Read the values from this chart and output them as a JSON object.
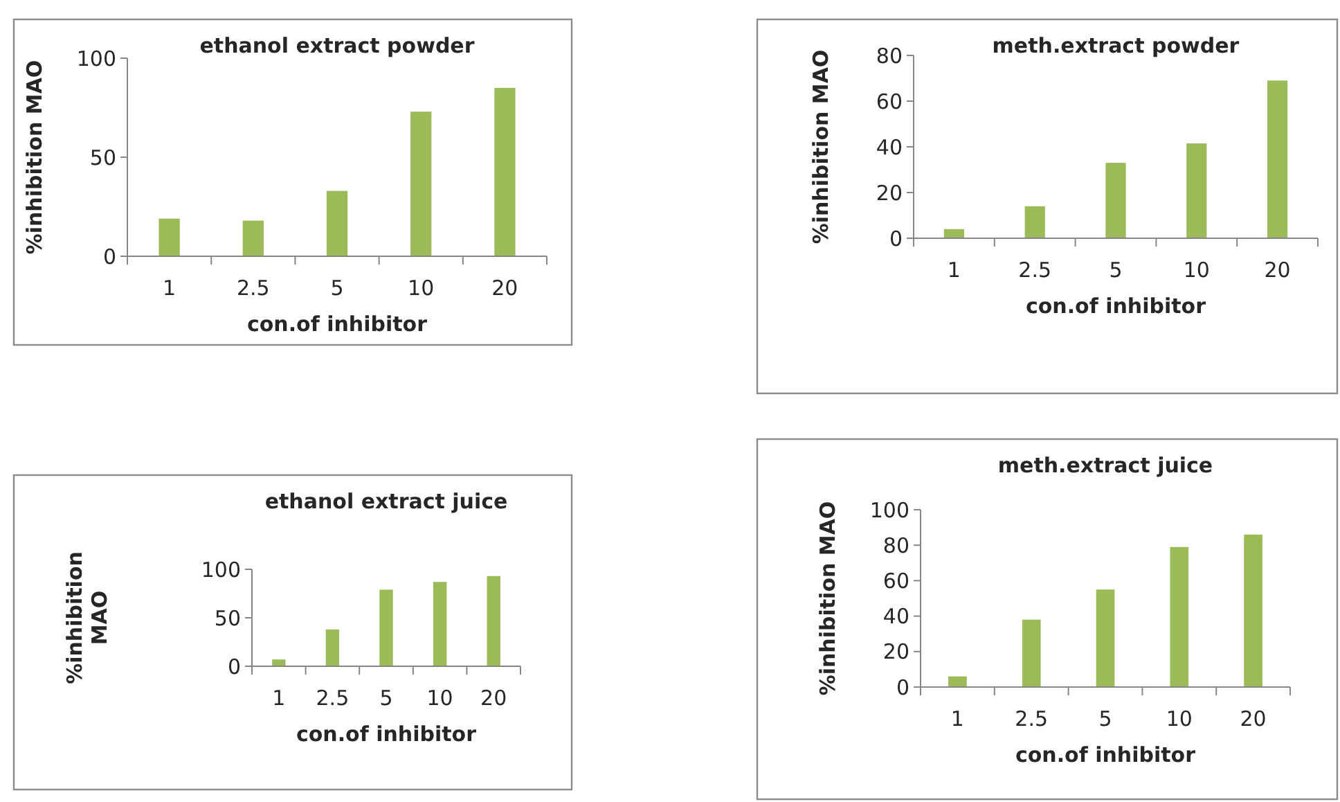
{
  "chart_data": [
    {
      "type": "bar",
      "title": "ethanol  extract powder",
      "xlabel": "con.of  inhibitor",
      "ylabel": "%inhibition  MAO",
      "categories": [
        "1",
        "2.5",
        "5",
        "10",
        "20"
      ],
      "values": [
        19,
        18,
        33,
        73,
        85
      ],
      "color": "#9bbb59",
      "ylim": [
        0,
        100
      ],
      "yticks": [
        0,
        50,
        100
      ],
      "grid": false
    },
    {
      "type": "bar",
      "title": "meth.extract powder",
      "xlabel": "con.of  inhibitor",
      "ylabel": "%inhibition  MAO",
      "categories": [
        "1",
        "2.5",
        "5",
        "10",
        "20"
      ],
      "values": [
        4,
        14,
        33,
        41.5,
        69
      ],
      "color": "#9bbb59",
      "ylim": [
        0,
        80
      ],
      "yticks": [
        0,
        20,
        40,
        60,
        80
      ],
      "grid": false
    },
    {
      "type": "bar",
      "title": "ethanol  extract juice",
      "xlabel": "con.of  inhibitor",
      "ylabel": "%inhibition  MAO",
      "categories": [
        "1",
        "2.5",
        "5",
        "10",
        "20"
      ],
      "values": [
        7,
        38,
        79,
        87,
        93
      ],
      "color": "#9bbb59",
      "ylim": [
        0,
        100
      ],
      "yticks": [
        0,
        50,
        100
      ],
      "grid": false
    },
    {
      "type": "bar",
      "title": "meth.extract juice",
      "xlabel": "con.of  inhibitor",
      "ylabel": "%inhibition  MAO",
      "categories": [
        "1",
        "2.5",
        "5",
        "10",
        "20"
      ],
      "values": [
        6,
        38,
        55,
        79,
        86
      ],
      "color": "#9bbb59",
      "ylim": [
        0,
        100
      ],
      "yticks": [
        0,
        20,
        40,
        60,
        80,
        100
      ],
      "grid": false
    }
  ]
}
